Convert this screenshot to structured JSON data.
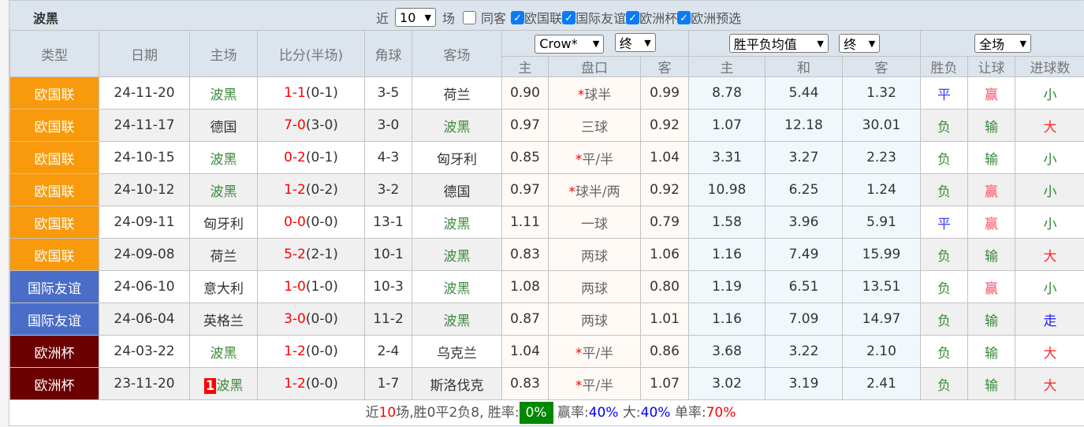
{
  "team": "波黑",
  "filter": {
    "prefix": "近",
    "count": "10",
    "suffix": "场",
    "same_venue": "同客",
    "same_venue_checked": false,
    "competitions": [
      {
        "label": "欧国联",
        "checked": true
      },
      {
        "label": "国际友谊",
        "checked": true
      },
      {
        "label": "欧洲杯",
        "checked": true
      },
      {
        "label": "欧洲预选",
        "checked": true
      }
    ]
  },
  "header": {
    "type": "类型",
    "date": "日期",
    "home": "主场",
    "score": "比分(半场)",
    "corner": "角球",
    "away": "客场",
    "company": "Crow*",
    "asian_period": "终",
    "eu_type": "胜平负均值",
    "eu_period": "终",
    "scope": "全场",
    "sub": [
      "主",
      "盘口",
      "客",
      "主",
      "和",
      "客",
      "胜负",
      "让球",
      "进球数"
    ]
  },
  "colors": {
    "欧国联": "#f89a0c",
    "国际友谊": "#4a6dc8",
    "欧洲杯": "#6b0000",
    "平": "#3a3aff",
    "赢": "#ff4d6a",
    "输": "#3b8a3b",
    "负": "#3b8a3b",
    "小": "#2a8a2a",
    "大": "#ff2a2a",
    "走": "#2020ff"
  },
  "rows": [
    {
      "type": "欧国联",
      "date": "24-11-20",
      "home": "波黑",
      "ft": "1-1",
      "ht": "(0-1)",
      "corner": "3-5",
      "away": "荷兰",
      "ah": "0.90",
      "line": "球半",
      "star": "*",
      "aa": "0.99",
      "w": "8.78",
      "d": "5.44",
      "l": "1.32",
      "r1": "平",
      "r2": "赢",
      "r3": "小"
    },
    {
      "type": "欧国联",
      "date": "24-11-17",
      "home": "德国",
      "ft": "7-0",
      "ht": "(3-0)",
      "corner": "3-0",
      "away": "波黑",
      "ah": "0.97",
      "line": "三球",
      "star": "",
      "aa": "0.92",
      "w": "1.07",
      "d": "12.18",
      "l": "30.01",
      "r1": "负",
      "r2": "输",
      "r3": "大"
    },
    {
      "type": "欧国联",
      "date": "24-10-15",
      "home": "波黑",
      "ft": "0-2",
      "ht": "(0-1)",
      "corner": "4-3",
      "away": "匈牙利",
      "ah": "0.85",
      "line": "平/半",
      "star": "*",
      "aa": "1.04",
      "w": "3.31",
      "d": "3.27",
      "l": "2.23",
      "r1": "负",
      "r2": "输",
      "r3": "小"
    },
    {
      "type": "欧国联",
      "date": "24-10-12",
      "home": "波黑",
      "ft": "1-2",
      "ht": "(0-2)",
      "corner": "3-2",
      "away": "德国",
      "ah": "0.97",
      "line": "球半/两",
      "star": "*",
      "aa": "0.92",
      "w": "10.98",
      "d": "6.25",
      "l": "1.24",
      "r1": "负",
      "r2": "赢",
      "r3": "小"
    },
    {
      "type": "欧国联",
      "date": "24-09-11",
      "home": "匈牙利",
      "ft": "0-0",
      "ht": "(0-0)",
      "corner": "13-1",
      "away": "波黑",
      "ah": "1.11",
      "line": "一球",
      "star": "",
      "aa": "0.79",
      "w": "1.58",
      "d": "3.96",
      "l": "5.91",
      "r1": "平",
      "r2": "赢",
      "r3": "小"
    },
    {
      "type": "欧国联",
      "date": "24-09-08",
      "home": "荷兰",
      "ft": "5-2",
      "ht": "(2-1)",
      "corner": "10-1",
      "away": "波黑",
      "ah": "0.83",
      "line": "两球",
      "star": "",
      "aa": "1.06",
      "w": "1.16",
      "d": "7.49",
      "l": "15.99",
      "r1": "负",
      "r2": "输",
      "r3": "大"
    },
    {
      "type": "国际友谊",
      "date": "24-06-10",
      "home": "意大利",
      "ft": "1-0",
      "ht": "(1-0)",
      "corner": "10-3",
      "away": "波黑",
      "ah": "1.08",
      "line": "两球",
      "star": "",
      "aa": "0.80",
      "w": "1.19",
      "d": "6.51",
      "l": "13.51",
      "r1": "负",
      "r2": "赢",
      "r3": "小"
    },
    {
      "type": "国际友谊",
      "date": "24-06-04",
      "home": "英格兰",
      "ft": "3-0",
      "ht": "(0-0)",
      "corner": "11-2",
      "away": "波黑",
      "ah": "0.87",
      "line": "两球",
      "star": "",
      "aa": "1.01",
      "w": "1.16",
      "d": "7.09",
      "l": "14.97",
      "r1": "负",
      "r2": "输",
      "r3": "走"
    },
    {
      "type": "欧洲杯",
      "date": "24-03-22",
      "home": "波黑",
      "ft": "1-2",
      "ht": "(0-0)",
      "corner": "2-4",
      "away": "乌克兰",
      "ah": "1.04",
      "line": "平/半",
      "star": "*",
      "aa": "0.86",
      "w": "3.68",
      "d": "3.22",
      "l": "2.10",
      "r1": "负",
      "r2": "输",
      "r3": "大"
    },
    {
      "type": "欧洲杯",
      "date": "23-11-20",
      "home": "波黑",
      "rank": "1",
      "ft": "1-2",
      "ht": "(0-0)",
      "corner": "1-7",
      "away": "斯洛伐克",
      "ah": "0.83",
      "line": "平/半",
      "star": "*",
      "aa": "1.07",
      "w": "3.02",
      "d": "3.19",
      "l": "2.41",
      "r1": "负",
      "r2": "输",
      "r3": "大"
    }
  ],
  "footer": {
    "p1": "近",
    "n": "10",
    "p2": "场,胜0平2负8, 胜率:",
    "win_rate": "0%",
    "ah_label": " 赢率:",
    "ah_rate": "40%",
    "ou_label": " 大:",
    "ou_rate": "40%",
    "odd_label": " 单率:",
    "odd_rate": "70%"
  }
}
